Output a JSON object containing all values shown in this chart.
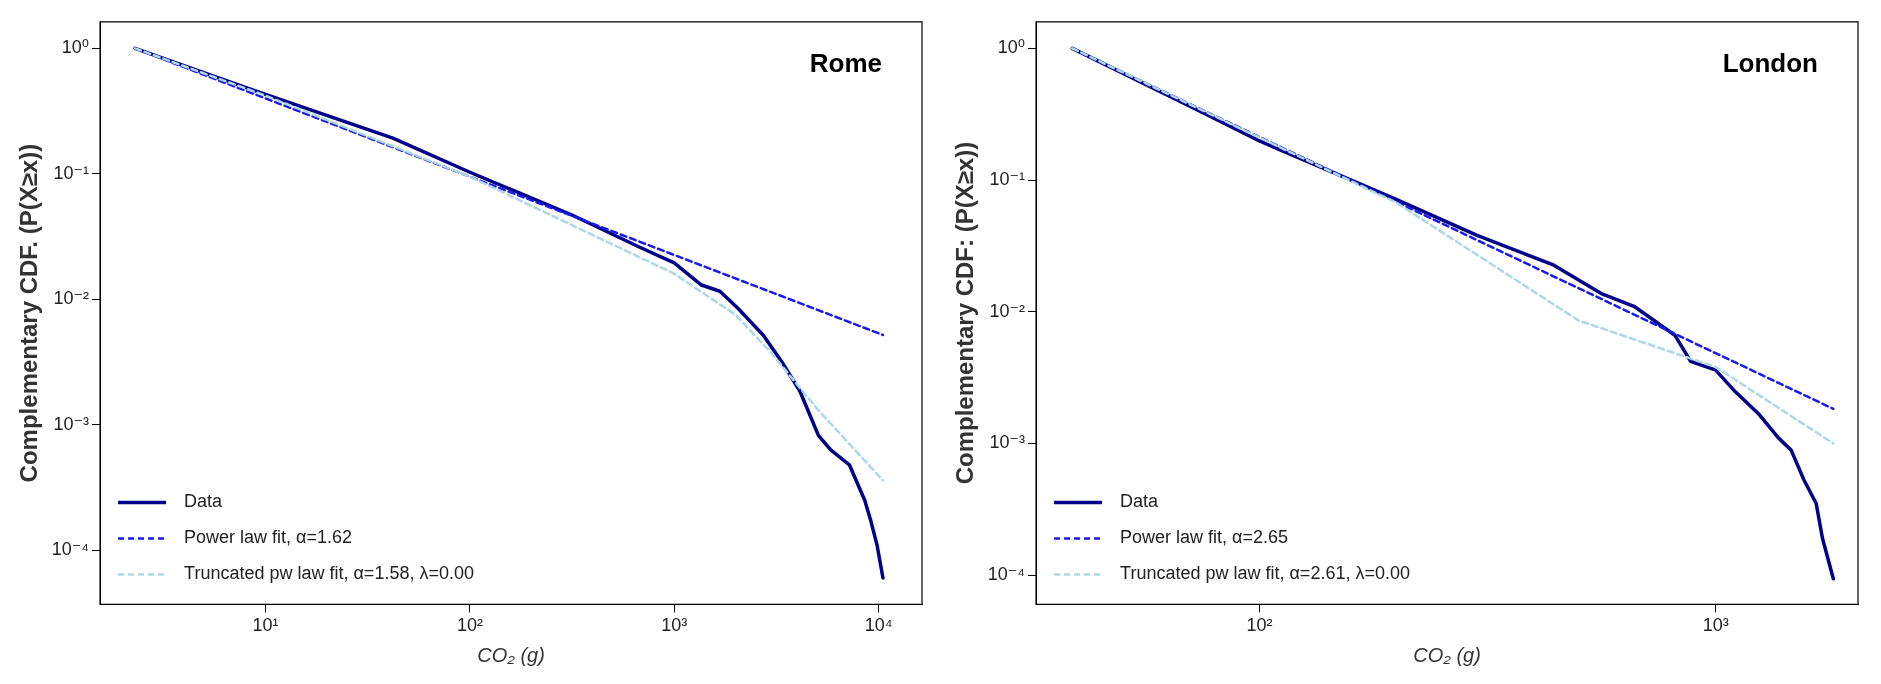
{
  "chart_data": [
    {
      "type": "line",
      "title": "Rome",
      "xlabel": "CO₂ (g)",
      "ylabel": "Complementary CDF. (P(X≥x))",
      "log": "xy",
      "grid": false,
      "legend": "bottom left",
      "marker": "none",
      "xlim": [
        1.55,
        16300
      ],
      "ylim": [
        3.7e-05,
        1.63
      ],
      "xticks": [
        {
          "value": 10,
          "label": "10¹"
        },
        {
          "value": 100,
          "label": "10²"
        },
        {
          "value": 1000,
          "label": "10³"
        },
        {
          "value": 10000,
          "label": "10⁴"
        }
      ],
      "yticks": [
        {
          "value": 0.0001,
          "label": "10⁻⁴"
        },
        {
          "value": 0.001,
          "label": "10⁻³"
        },
        {
          "value": 0.01,
          "label": "10⁻²"
        },
        {
          "value": 0.1,
          "label": "10⁻¹"
        },
        {
          "value": 1,
          "label": "10⁰"
        }
      ],
      "series": [
        {
          "name": "Data",
          "color": "#00008b",
          "line_style": "solid",
          "x": [
            2.3,
            10,
            42,
            100,
            316,
            678,
            1000,
            1358,
            1672,
            2060,
            2720,
            3350,
            4120,
            5080,
            5830,
            7190,
            8550,
            9170,
            9820,
            10500
          ],
          "values": [
            1.0,
            0.43,
            0.193,
            0.103,
            0.047,
            0.026,
            0.0195,
            0.013,
            0.0116,
            0.0084,
            0.0052,
            0.0032,
            0.00185,
            0.00082,
            0.00063,
            0.00048,
            0.00025,
            0.00017,
            0.00011,
            6e-05
          ]
        },
        {
          "name": "Power law fit, α=1.62",
          "color": "#1a1aee",
          "line_style": "dashed",
          "x": [
            2.3,
            10500
          ],
          "values": [
            1.0,
            0.0052
          ]
        },
        {
          "name": "Truncated pw law fit, α=1.58, λ=0.00",
          "color": "#add8e6",
          "line_style": "dashed",
          "x": [
            2.3,
            10,
            100,
            1000,
            2000,
            3000,
            5000,
            10500
          ],
          "values": [
            1.0,
            0.42,
            0.095,
            0.016,
            0.0075,
            0.0037,
            0.00134,
            0.00036
          ]
        }
      ]
    },
    {
      "type": "line",
      "title": "London",
      "xlabel": "CO₂ (g)",
      "ylabel": "Complementary CDF: (P(X≥x))",
      "log": "xy",
      "grid": false,
      "legend": "bottom left",
      "marker": "none",
      "xlim": [
        32.4,
        2050
      ],
      "ylim": [
        6e-05,
        1.59
      ],
      "xticks": [
        {
          "value": 100,
          "label": "10²"
        },
        {
          "value": 1000,
          "label": "10³"
        }
      ],
      "yticks": [
        {
          "value": 0.0001,
          "label": "10⁻⁴"
        },
        {
          "value": 0.001,
          "label": "10⁻³"
        },
        {
          "value": 0.01,
          "label": "10⁻²"
        },
        {
          "value": 0.1,
          "label": "10⁻¹"
        },
        {
          "value": 1,
          "label": "10⁰"
        }
      ],
      "series": [
        {
          "name": "Data",
          "color": "#00008b",
          "line_style": "solid",
          "x": [
            38.9,
            72,
            100,
            200,
            300,
            439,
            565,
            662,
            815,
            881,
            1000,
            1100,
            1247,
            1373,
            1463,
            1560,
            1660,
            1714,
            1810
          ],
          "values": [
            1.0,
            0.35,
            0.198,
            0.071,
            0.038,
            0.0228,
            0.0136,
            0.011,
            0.0066,
            0.0042,
            0.0036,
            0.0025,
            0.00165,
            0.0011,
            0.00089,
            0.00053,
            0.00035,
            0.00019,
            9.4e-05
          ]
        },
        {
          "name": "Power law fit, α=2.65",
          "color": "#1a1aee",
          "line_style": "dashed",
          "x": [
            38.9,
            1810
          ],
          "values": [
            1.0,
            0.00183
          ]
        },
        {
          "name": "Truncated pw law fit, α=2.61, λ=0.00",
          "color": "#add8e6",
          "line_style": "dashed",
          "x": [
            38.9,
            200,
            500,
            1000,
            1810
          ],
          "values": [
            1.0,
            0.067,
            0.0086,
            0.0038,
            0.001
          ]
        }
      ]
    }
  ]
}
